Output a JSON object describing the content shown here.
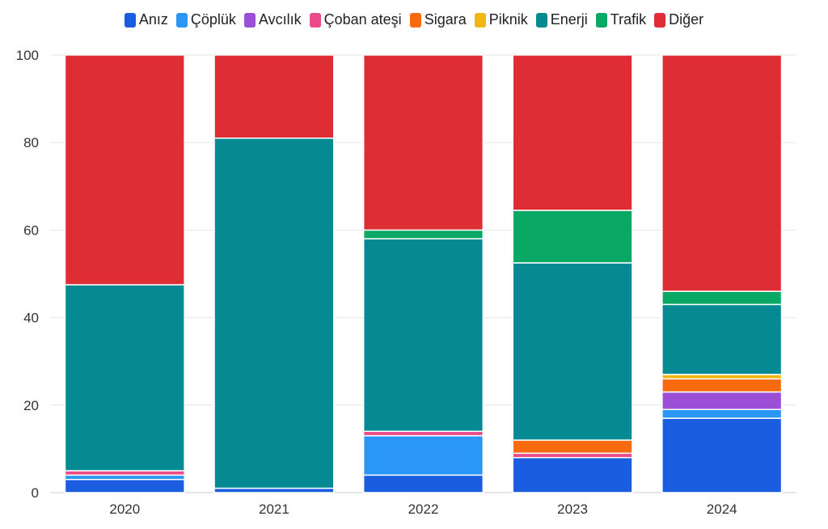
{
  "chart_data": {
    "type": "bar",
    "stacked": true,
    "categories": [
      "2020",
      "2021",
      "2022",
      "2023",
      "2024"
    ],
    "ylim": [
      0,
      100
    ],
    "yticks": [
      "0",
      "20",
      "40",
      "60",
      "80",
      "100"
    ],
    "grid": true,
    "legend_position": "top",
    "series": [
      {
        "name": "Anız",
        "color": "#1a5de0",
        "values": [
          3,
          1,
          4,
          8,
          17
        ]
      },
      {
        "name": "Çöplük",
        "color": "#2a96f5",
        "values": [
          1,
          0,
          9,
          0,
          2
        ]
      },
      {
        "name": "Avcılık",
        "color": "#9a4fd6",
        "values": [
          0,
          0,
          0,
          0,
          4
        ]
      },
      {
        "name": "Çoban ateşi",
        "color": "#ea4c8a",
        "values": [
          1,
          0,
          1,
          1,
          0
        ]
      },
      {
        "name": "Sigara",
        "color": "#f96a0f",
        "values": [
          0,
          0,
          0,
          3,
          3
        ]
      },
      {
        "name": "Piknik",
        "color": "#f0b713",
        "values": [
          0,
          0,
          0,
          0,
          1
        ]
      },
      {
        "name": "Enerji",
        "color": "#058a93",
        "values": [
          42.5,
          80,
          44,
          40.5,
          16
        ]
      },
      {
        "name": "Trafik",
        "color": "#0aa865",
        "values": [
          0,
          0,
          2,
          12,
          3
        ]
      },
      {
        "name": "Diğer",
        "color": "#de2d35",
        "values": [
          52.5,
          19,
          40,
          35.5,
          54
        ]
      }
    ]
  }
}
